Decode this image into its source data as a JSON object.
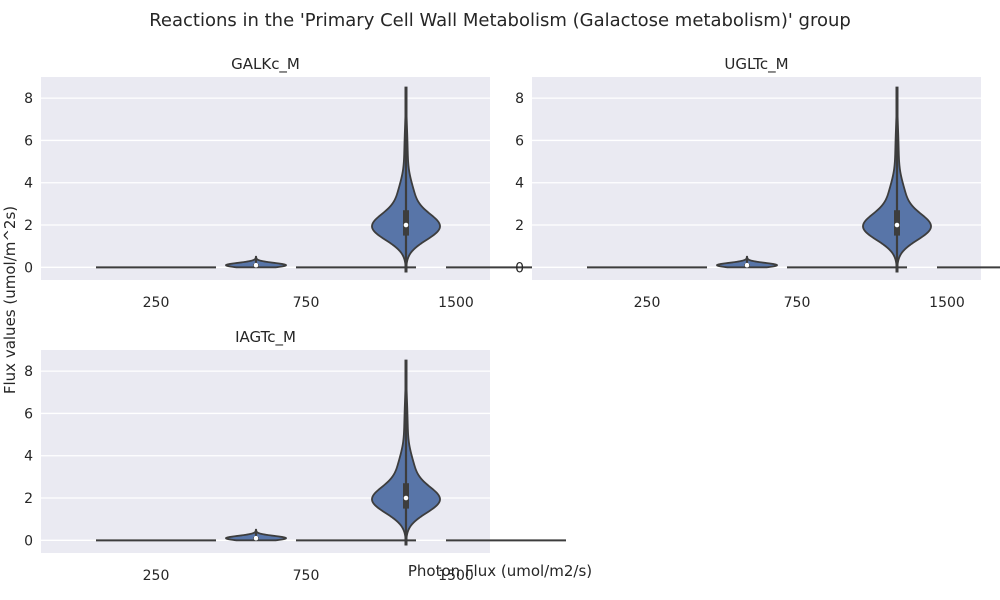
{
  "chart_data": {
    "type": "violin",
    "title": "Reactions in the 'Primary Cell Wall Metabolism (Galactose metabolism)' group",
    "xlabel": "Photon Flux (umol/m2/s)",
    "ylabel": "Flux values (umol/m^2s)",
    "categories": [
      "250",
      "750",
      "1500"
    ],
    "ylim": [
      -0.6,
      9
    ],
    "yticks": [
      0,
      2,
      4,
      6,
      8
    ],
    "grid": true,
    "colors": {
      "violin": "#5875a8",
      "outline": "#3d3d3d",
      "background": "#eaeaf2",
      "grid": "#ffffff"
    },
    "panels": [
      {
        "title": "GALKc_M",
        "groups": [
          {
            "category": "250",
            "violins": [
              {
                "shape": "flat",
                "value": 0
              }
            ]
          },
          {
            "category": "750",
            "violins": [
              {
                "shape": "small",
                "min": 0,
                "max": 0.5,
                "median": 0.1,
                "q1": 0.05,
                "q3": 0.15
              },
              {
                "shape": "flat",
                "value": 0
              }
            ]
          },
          {
            "category": "1500",
            "violins": [
              {
                "shape": "main",
                "min": -0.2,
                "max": 8.5,
                "median": 2.0,
                "q1": 1.5,
                "q3": 2.7
              },
              {
                "shape": "flat",
                "value": 0
              }
            ]
          }
        ]
      },
      {
        "title": "UGLTc_M",
        "groups": [
          {
            "category": "250",
            "violins": [
              {
                "shape": "flat",
                "value": 0
              }
            ]
          },
          {
            "category": "750",
            "violins": [
              {
                "shape": "small",
                "min": 0,
                "max": 0.5,
                "median": 0.1,
                "q1": 0.05,
                "q3": 0.15
              },
              {
                "shape": "flat",
                "value": 0
              }
            ]
          },
          {
            "category": "1500",
            "violins": [
              {
                "shape": "main",
                "min": -0.2,
                "max": 8.5,
                "median": 2.0,
                "q1": 1.5,
                "q3": 2.7
              },
              {
                "shape": "flat",
                "value": 0
              }
            ]
          }
        ]
      },
      {
        "title": "IAGTc_M",
        "groups": [
          {
            "category": "250",
            "violins": [
              {
                "shape": "flat",
                "value": 0
              }
            ]
          },
          {
            "category": "750",
            "violins": [
              {
                "shape": "small",
                "min": 0,
                "max": 0.5,
                "median": 0.1,
                "q1": 0.05,
                "q3": 0.15
              },
              {
                "shape": "flat",
                "value": 0
              }
            ]
          },
          {
            "category": "1500",
            "violins": [
              {
                "shape": "main",
                "min": -0.2,
                "max": 8.5,
                "median": 2.0,
                "q1": 1.5,
                "q3": 2.7
              },
              {
                "shape": "flat",
                "value": 0
              }
            ]
          }
        ]
      }
    ]
  }
}
